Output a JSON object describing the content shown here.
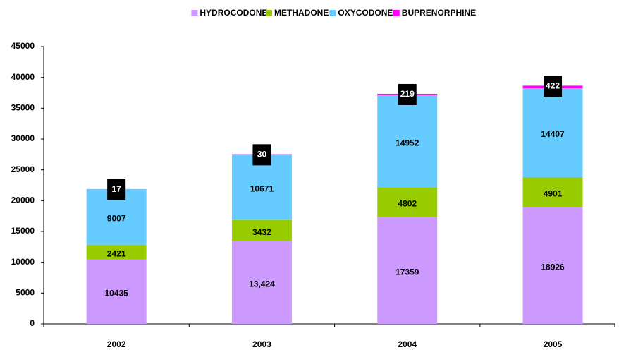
{
  "chart_data": {
    "type": "stacked_bar",
    "categories": [
      "2002",
      "2003",
      "2004",
      "2005"
    ],
    "series": [
      {
        "name": "HYDROCODONE",
        "color": "#cc99ff",
        "values": [
          10435,
          13424,
          17359,
          18926
        ],
        "value_labels": [
          "10435",
          "13,424",
          "17359",
          "18926"
        ]
      },
      {
        "name": "METHADONE",
        "color": "#99cc00",
        "values": [
          2421,
          3432,
          4802,
          4901
        ]
      },
      {
        "name": "OXYCODONE",
        "color": "#66ccff",
        "values": [
          9007,
          10671,
          14952,
          14407
        ]
      },
      {
        "name": "BUPRENORPHINE",
        "color": "#ff00ff",
        "values": [
          17,
          30,
          219,
          422
        ]
      }
    ],
    "ylim": [
      0,
      45000
    ],
    "yticks": [
      0,
      5000,
      10000,
      15000,
      20000,
      25000,
      30000,
      35000,
      40000,
      45000
    ],
    "legend": "top"
  }
}
